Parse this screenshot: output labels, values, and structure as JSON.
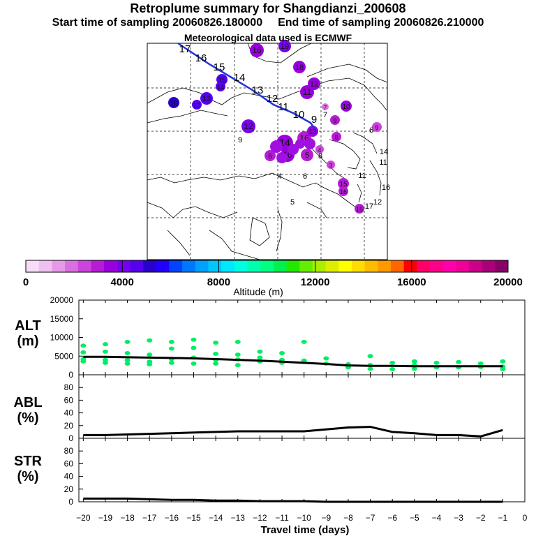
{
  "header": {
    "title": "Retroplume summary for Shangdianzi_200608",
    "start_label": "Start time of sampling 20060826.180000",
    "end_label": "End time of sampling 20060826.210000",
    "met_label": "Meteorological data used is ECMWF"
  },
  "colorbar": {
    "label": "Altitude (m)",
    "ticks": [
      "0",
      "4000",
      "8000",
      "12000",
      "16000",
      "20000"
    ],
    "colors": [
      "#f7dcf7",
      "#f0c0f0",
      "#e69ae6",
      "#da70e0",
      "#cc44dd",
      "#b61cd6",
      "#9900dd",
      "#7700ee",
      "#5500ee",
      "#2a00cc",
      "#2200ff",
      "#0044ff",
      "#0077ff",
      "#00a0ff",
      "#00c8ff",
      "#00e8ff",
      "#00ffe0",
      "#00ffb0",
      "#00ff80",
      "#00f050",
      "#22e800",
      "#66ee00",
      "#aaee00",
      "#ddee00",
      "#ffff00",
      "#ffdd00",
      "#ffbb00",
      "#ff9900",
      "#ff6600",
      "#ff0000",
      "#ff0066",
      "#ff0088",
      "#ff00aa",
      "#ee0099",
      "#cc0088",
      "#aa0077",
      "#880066"
    ]
  },
  "map": {
    "trajectory_labels": [
      "17",
      "16",
      "15",
      "14",
      "13",
      "12",
      "11",
      "10",
      "9"
    ],
    "bubbles": [
      {
        "label": "16",
        "color": "#9900dd"
      },
      {
        "label": "19",
        "color": "#7700ee"
      },
      {
        "label": "18",
        "color": "#9900dd"
      },
      {
        "label": "12",
        "color": "#9900dd"
      },
      {
        "label": "11",
        "color": "#9900dd"
      },
      {
        "label": "10",
        "color": "#9900dd"
      },
      {
        "label": "13",
        "color": "#5500ee"
      },
      {
        "label": "12",
        "color": "#5500ee"
      },
      {
        "label": "10",
        "color": "#2a00cc"
      },
      {
        "label": "15",
        "color": "#5500ee"
      },
      {
        "label": "14",
        "color": "#5500ee"
      },
      {
        "label": "12",
        "color": "#7700ee"
      },
      {
        "label": "9",
        "color": "#b61cd6"
      },
      {
        "label": "8",
        "color": "#b61cd6"
      },
      {
        "label": "7",
        "color": "#da70e0"
      },
      {
        "label": "9",
        "color": "#cc44dd"
      },
      {
        "label": "14",
        "color": "#9900dd"
      },
      {
        "label": "10",
        "color": "#9900dd"
      },
      {
        "label": "6",
        "color": "#b61cd6"
      },
      {
        "label": "5",
        "color": "#b61cd6"
      },
      {
        "label": "4",
        "color": "#cc44dd"
      },
      {
        "label": "3",
        "color": "#cc44dd"
      },
      {
        "label": "15",
        "color": "#b61cd6"
      },
      {
        "label": "16",
        "color": "#b61cd6"
      },
      {
        "label": "15",
        "color": "#b61cd6"
      },
      {
        "label": "16",
        "color": "#b61cd6"
      },
      {
        "label": "13",
        "color": "#9900dd"
      }
    ],
    "small_labels": [
      "9",
      "6",
      "4",
      "6",
      "5",
      "11",
      "12",
      "11",
      "14",
      "16",
      "17",
      "7",
      "8"
    ]
  },
  "chart_data": [
    {
      "type": "line",
      "panel": "ALT",
      "ylabel": "ALT\n(m)",
      "ylabel_lines": [
        "ALT",
        "(m)"
      ],
      "ylim": [
        0,
        20000
      ],
      "yticks": [
        "0",
        "5000",
        "10000",
        "15000",
        "20000"
      ],
      "x": [
        -20,
        -19,
        -18,
        -17,
        -16,
        -15,
        -14,
        -13,
        -12,
        -11,
        -10,
        -9,
        -8,
        -7,
        -6,
        -5,
        -4,
        -3,
        -2,
        -1
      ],
      "series": [
        {
          "name": "median altitude",
          "color": "#000000",
          "values": [
            4800,
            4800,
            4700,
            4600,
            4500,
            4400,
            4200,
            4000,
            3800,
            3500,
            3200,
            2900,
            2500,
            2400,
            2400,
            2300,
            2300,
            2300,
            2300,
            2300
          ]
        },
        {
          "name": "particle altitudes",
          "color": "#00ee66",
          "points": [
            [
              -20,
              7800
            ],
            [
              -20,
              6000
            ],
            [
              -20,
              4200
            ],
            [
              -20,
              3600
            ],
            [
              -19,
              8200
            ],
            [
              -19,
              6200
            ],
            [
              -19,
              4000
            ],
            [
              -19,
              3200
            ],
            [
              -18,
              8800
            ],
            [
              -18,
              5800
            ],
            [
              -18,
              3900
            ],
            [
              -18,
              3000
            ],
            [
              -17,
              9200
            ],
            [
              -17,
              5400
            ],
            [
              -17,
              3500
            ],
            [
              -17,
              2800
            ],
            [
              -16,
              8800
            ],
            [
              -16,
              7000
            ],
            [
              -16,
              4200
            ],
            [
              -16,
              3200
            ],
            [
              -15,
              9400
            ],
            [
              -15,
              7200
            ],
            [
              -15,
              4600
            ],
            [
              -15,
              3000
            ],
            [
              -14,
              8600
            ],
            [
              -14,
              5600
            ],
            [
              -14,
              4000
            ],
            [
              -14,
              3000
            ],
            [
              -13,
              8800
            ],
            [
              -13,
              5400
            ],
            [
              -13,
              4100
            ],
            [
              -13,
              2600
            ],
            [
              -12,
              6200
            ],
            [
              -12,
              4600
            ],
            [
              -12,
              3600
            ],
            [
              -11,
              5800
            ],
            [
              -11,
              4000
            ],
            [
              -11,
              3200
            ],
            [
              -10,
              8800
            ],
            [
              -10,
              3800
            ],
            [
              -9,
              4400
            ],
            [
              -9,
              3000
            ],
            [
              -8,
              2800
            ],
            [
              -8,
              2000
            ],
            [
              -7,
              5000
            ],
            [
              -7,
              2600
            ],
            [
              -7,
              1600
            ],
            [
              -6,
              3200
            ],
            [
              -6,
              1500
            ],
            [
              -5,
              3600
            ],
            [
              -5,
              2600
            ],
            [
              -5,
              1600
            ],
            [
              -4,
              3200
            ],
            [
              -4,
              2000
            ],
            [
              -3,
              3400
            ],
            [
              -3,
              2000
            ],
            [
              -2,
              3000
            ],
            [
              -2,
              2100
            ],
            [
              -1,
              3600
            ],
            [
              -1,
              2200
            ],
            [
              -1,
              1500
            ]
          ]
        }
      ]
    },
    {
      "type": "line",
      "panel": "ABL",
      "ylabel_lines": [
        "ABL",
        "(%)"
      ],
      "ylim": [
        0,
        100
      ],
      "yticks": [
        "0",
        "20",
        "40",
        "60",
        "80"
      ],
      "x": [
        -20,
        -19,
        -18,
        -17,
        -16,
        -15,
        -14,
        -13,
        -12,
        -11,
        -10,
        -9,
        -8,
        -7,
        -6,
        -5,
        -4,
        -3,
        -2,
        -1
      ],
      "series": [
        {
          "name": "ABL fraction",
          "color": "#000000",
          "values": [
            5,
            5,
            6,
            7,
            8,
            9,
            10,
            11,
            11,
            11,
            11,
            14,
            17,
            18,
            10,
            8,
            5,
            5,
            3,
            13
          ]
        }
      ]
    },
    {
      "type": "line",
      "panel": "STR",
      "ylabel_lines": [
        "STR",
        "(%)"
      ],
      "ylim": [
        0,
        100
      ],
      "yticks": [
        "0",
        "20",
        "40",
        "60",
        "80"
      ],
      "xlabel": "Travel time (days)",
      "xticks": [
        "−20",
        "−19",
        "−18",
        "−17",
        "−16",
        "−15",
        "−14",
        "−13",
        "−12",
        "−11",
        "−10",
        "−9",
        "−8",
        "−7",
        "−6",
        "−5",
        "−4",
        "−3",
        "−2",
        "−1",
        "0"
      ],
      "x": [
        -20,
        -19,
        -18,
        -17,
        -16,
        -15,
        -14,
        -13,
        -12,
        -11,
        -10,
        -9,
        -8,
        -7,
        -6,
        -5,
        -4,
        -3,
        -2,
        -1
      ],
      "series": [
        {
          "name": "stratospheric fraction",
          "color": "#000000",
          "values": [
            5,
            5,
            5,
            4,
            3,
            3,
            2,
            2,
            1,
            1,
            1,
            0,
            0,
            0,
            0,
            0,
            0,
            0,
            0,
            0
          ]
        }
      ]
    }
  ]
}
